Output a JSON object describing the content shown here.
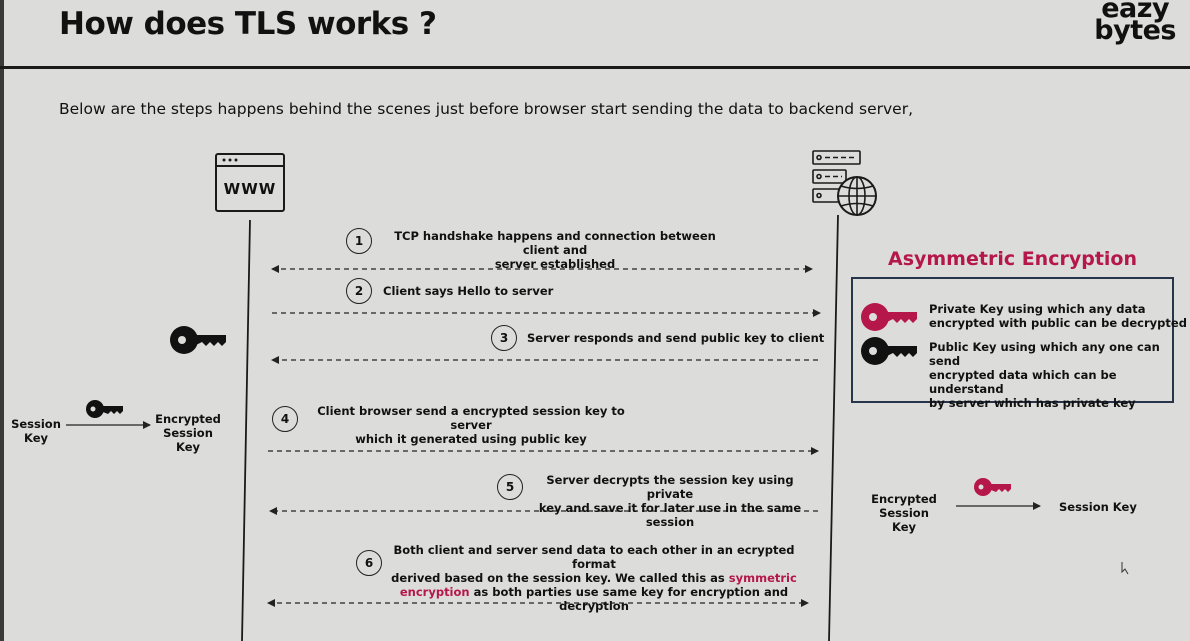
{
  "header": {
    "title": "How does TLS works ?",
    "logo_line1": "eazy",
    "logo_line2": "bytes"
  },
  "intro": "Below are the steps happens behind the scenes just before browser start sending the data to backend server,",
  "client": {
    "label": "WWW"
  },
  "steps": [
    {
      "num": "1",
      "text_line1": "TCP handshake happens and connection between client and",
      "text_line2": "server established"
    },
    {
      "num": "2",
      "text_line1": "Client says Hello to server"
    },
    {
      "num": "3",
      "text_line1": "Server responds and send public key to client"
    },
    {
      "num": "4",
      "text_line1": "Client browser send a encrypted session key to server",
      "text_line2": "which it generated using public key"
    },
    {
      "num": "5",
      "text_line1": "Server decrypts the session key using private",
      "text_line2": "key and save it for later use in the same session"
    },
    {
      "num": "6",
      "text_line1": "Both client and server send data to each other in an ecrypted format",
      "text_line2_pre": "derived based on the session key. We called this as ",
      "text_line2_hl": "symmetric",
      "text_line3_hl": "encryption",
      "text_line3_post": " as both parties use same key for encryption and decryption"
    }
  ],
  "left_flow": {
    "from_line1": "Session",
    "from_line2": "Key",
    "to_line1": "Encrypted",
    "to_line2": "Session Key"
  },
  "right_flow": {
    "from_line1": "Encrypted",
    "from_line2": "Session Key",
    "to": "Session Key"
  },
  "legend": {
    "title": "Asymmetric Encryption",
    "private_line1": "Private Key using which any data",
    "private_line2": "encrypted with public can be decrypted",
    "public_line1": "Public Key using which any one can send",
    "public_line2": "encrypted data which can be understand",
    "public_line3": "by server which has private key"
  },
  "colors": {
    "private_key": "#b5174a",
    "public_key": "#111111",
    "accent": "#b5174a",
    "box_border": "#27344a"
  }
}
